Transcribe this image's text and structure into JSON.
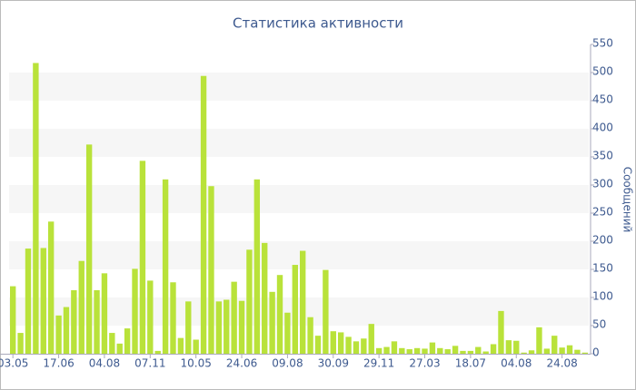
{
  "chart_data": {
    "type": "bar",
    "title": "Статистика активности",
    "y_label": "Сообщений",
    "categories": [
      "03.05",
      null,
      null,
      null,
      null,
      null,
      "17.06",
      null,
      null,
      null,
      null,
      null,
      "04.08",
      null,
      null,
      null,
      null,
      null,
      "07.11",
      null,
      null,
      null,
      null,
      null,
      "10.05",
      null,
      null,
      null,
      null,
      null,
      "24.06",
      null,
      null,
      null,
      null,
      null,
      "09.08",
      null,
      null,
      null,
      null,
      null,
      "30.09",
      null,
      null,
      null,
      null,
      null,
      "29.11",
      null,
      null,
      null,
      null,
      null,
      "27.03",
      null,
      null,
      null,
      null,
      null,
      "18.07",
      null,
      null,
      null,
      null,
      null,
      "04.08",
      null,
      null,
      null,
      null,
      null,
      "24.08",
      null,
      null,
      null
    ],
    "values": [
      120,
      37,
      187,
      517,
      188,
      235,
      68,
      83,
      113,
      165,
      372,
      113,
      143,
      37,
      18,
      45,
      151,
      343,
      130,
      5,
      310,
      127,
      28,
      93,
      25,
      494,
      298,
      93,
      96,
      128,
      94,
      185,
      310,
      197,
      110,
      140,
      73,
      158,
      183,
      65,
      32,
      149,
      40,
      38,
      30,
      22,
      27,
      53,
      10,
      12,
      22,
      10,
      8,
      10,
      9,
      20,
      10,
      8,
      14,
      5,
      5,
      12,
      4,
      17,
      76,
      24,
      23,
      2,
      6,
      47,
      9,
      32,
      11,
      15,
      7,
      2
    ],
    "color": "#b9e23a",
    "ylim": [
      0,
      550
    ],
    "yticks": [
      0,
      50,
      100,
      150,
      200,
      250,
      300,
      350,
      400,
      450,
      500,
      550
    ],
    "grid": true
  }
}
